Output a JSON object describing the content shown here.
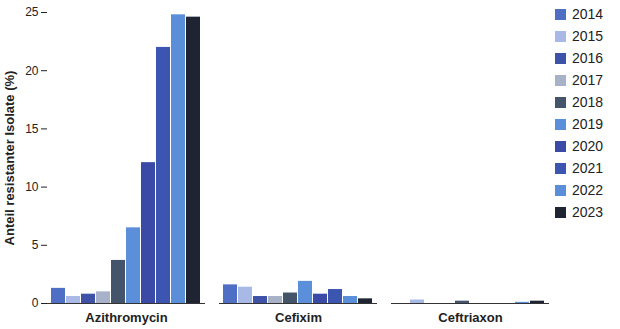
{
  "chart_data": {
    "type": "bar",
    "y_label": "Anteil resistanter Isolate (%)",
    "categories": [
      "Azithromycin",
      "Cefixim",
      "Ceftriaxon"
    ],
    "series": [
      {
        "name": "2014",
        "color": "#4f6fc4",
        "values": [
          1.3,
          1.6,
          0
        ]
      },
      {
        "name": "2015",
        "color": "#a9b9e6",
        "values": [
          0.6,
          1.4,
          0.3
        ]
      },
      {
        "name": "2016",
        "color": "#3e53a8",
        "values": [
          0.8,
          0.6,
          0
        ]
      },
      {
        "name": "2017",
        "color": "#a7b1c7",
        "values": [
          1.0,
          0.6,
          0
        ]
      },
      {
        "name": "2018",
        "color": "#44546a",
        "values": [
          3.7,
          0.9,
          0.2
        ]
      },
      {
        "name": "2019",
        "color": "#5b8fd9",
        "values": [
          6.5,
          1.9,
          0
        ]
      },
      {
        "name": "2020",
        "color": "#3a4aa6",
        "values": [
          12.1,
          0.8,
          0
        ]
      },
      {
        "name": "2021",
        "color": "#3b55b0",
        "values": [
          22.0,
          1.2,
          0
        ]
      },
      {
        "name": "2022",
        "color": "#5a8ed8",
        "values": [
          24.8,
          0.6,
          0.1
        ]
      },
      {
        "name": "2023",
        "color": "#1f2433",
        "values": [
          24.6,
          0.4,
          0.2
        ]
      }
    ],
    "ylim": [
      0,
      25
    ],
    "yticks": [
      0,
      5,
      10,
      15,
      20,
      25
    ],
    "grid": false,
    "legend": "right"
  }
}
